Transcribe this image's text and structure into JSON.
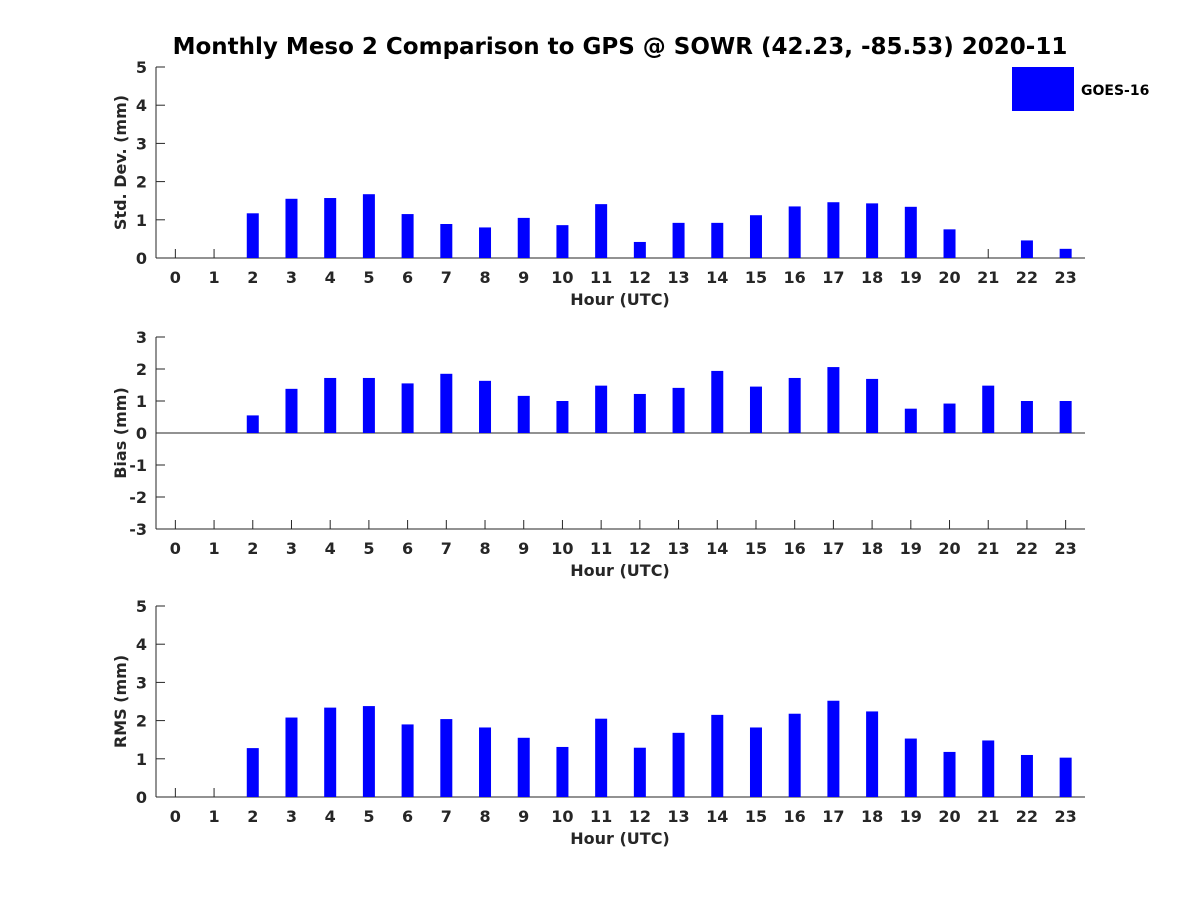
{
  "figure": {
    "title": "Monthly Meso 2 Comparison to GPS @ SOWR (42.23, -85.53) 2020-11",
    "legend": {
      "label": "GOES-16",
      "color": "#0000ff",
      "placement": "top-right"
    }
  },
  "chart_data": [
    {
      "type": "bar",
      "title": "",
      "xlabel": "Hour (UTC)",
      "ylabel": "Std. Dev. (mm)",
      "ylim": [
        0,
        5
      ],
      "yticks": [
        0,
        1,
        2,
        3,
        4,
        5
      ],
      "xlim": [
        -0.5,
        23.5
      ],
      "categories": [
        0,
        1,
        2,
        3,
        4,
        5,
        6,
        7,
        8,
        9,
        10,
        11,
        12,
        13,
        14,
        15,
        16,
        17,
        18,
        19,
        20,
        21,
        22,
        23
      ],
      "series": [
        {
          "name": "GOES-16",
          "color": "#0000ff",
          "values": [
            null,
            null,
            1.17,
            1.55,
            1.57,
            1.67,
            1.15,
            0.89,
            0.8,
            1.05,
            0.86,
            1.41,
            0.42,
            0.92,
            0.92,
            1.12,
            1.35,
            1.46,
            1.43,
            1.34,
            0.75,
            null,
            0.46,
            0.24
          ]
        }
      ]
    },
    {
      "type": "bar",
      "title": "",
      "xlabel": "Hour (UTC)",
      "ylabel": "Bias (mm)",
      "ylim": [
        -3,
        3
      ],
      "yticks": [
        -3,
        -2,
        -1,
        0,
        1,
        2,
        3
      ],
      "xlim": [
        -0.5,
        23.5
      ],
      "categories": [
        0,
        1,
        2,
        3,
        4,
        5,
        6,
        7,
        8,
        9,
        10,
        11,
        12,
        13,
        14,
        15,
        16,
        17,
        18,
        19,
        20,
        21,
        22,
        23
      ],
      "series": [
        {
          "name": "GOES-16",
          "color": "#0000ff",
          "values": [
            null,
            null,
            0.55,
            1.38,
            1.72,
            1.72,
            1.55,
            1.85,
            1.63,
            1.16,
            1.0,
            1.48,
            1.22,
            1.41,
            1.94,
            1.45,
            1.72,
            2.06,
            1.69,
            0.76,
            0.92,
            1.48,
            1.0,
            1.0
          ]
        }
      ]
    },
    {
      "type": "bar",
      "title": "",
      "xlabel": "Hour (UTC)",
      "ylabel": "RMS (mm)",
      "ylim": [
        0,
        5
      ],
      "yticks": [
        0,
        1,
        2,
        3,
        4,
        5
      ],
      "xlim": [
        -0.5,
        23.5
      ],
      "categories": [
        0,
        1,
        2,
        3,
        4,
        5,
        6,
        7,
        8,
        9,
        10,
        11,
        12,
        13,
        14,
        15,
        16,
        17,
        18,
        19,
        20,
        21,
        22,
        23
      ],
      "series": [
        {
          "name": "GOES-16",
          "color": "#0000ff",
          "values": [
            null,
            null,
            1.28,
            2.08,
            2.34,
            2.38,
            1.9,
            2.04,
            1.82,
            1.55,
            1.31,
            2.05,
            1.29,
            1.68,
            2.15,
            1.82,
            2.18,
            2.52,
            2.24,
            1.53,
            1.18,
            1.48,
            1.1,
            1.03
          ]
        }
      ]
    }
  ]
}
